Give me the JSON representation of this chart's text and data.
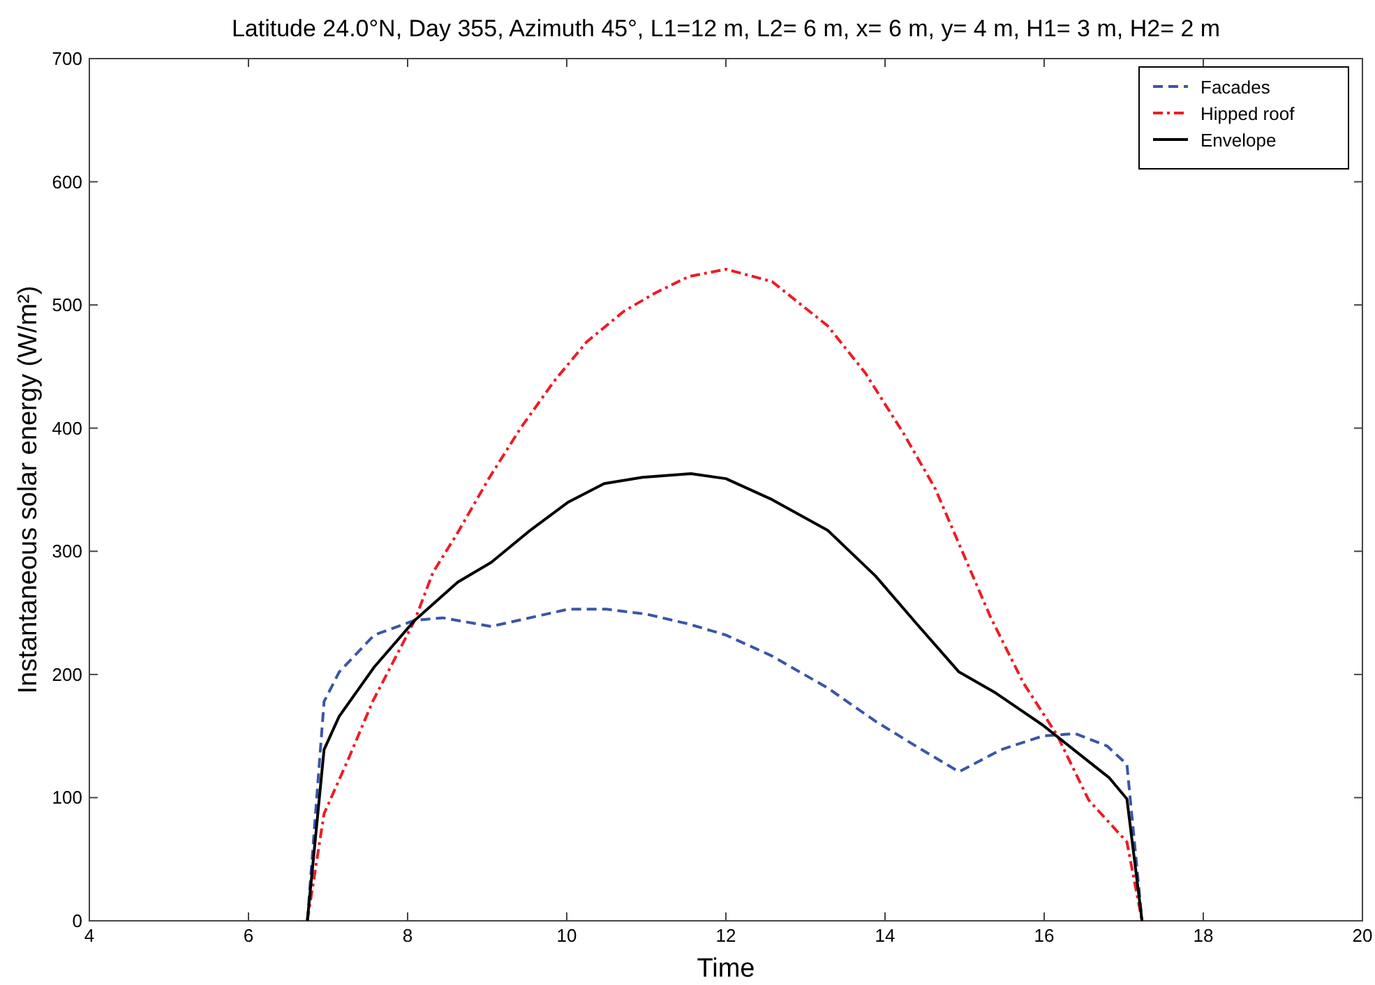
{
  "chart_data": {
    "type": "line",
    "title": "Latitude 24.0°N, Day 355, Azimuth  45°, L1=12 m, L2= 6 m, x= 6 m, y= 4 m, H1= 3 m, H2= 2 m",
    "xlabel": "Time",
    "ylabel": "Instantaneous solar energy (W/m²)",
    "xlim": [
      4,
      20
    ],
    "xticks": [
      4,
      6,
      8,
      10,
      12,
      14,
      16,
      18,
      20
    ],
    "ylim": [
      0,
      700
    ],
    "yticks": [
      0,
      100,
      200,
      300,
      400,
      500,
      600,
      700
    ],
    "grid": false,
    "legend": "top right",
    "marker": "none",
    "series": [
      {
        "name": "Facades",
        "color": "#3a56a8",
        "line_style": "dashed",
        "x": [
          6.74,
          6.95,
          7.14,
          7.58,
          8.09,
          8.44,
          9.05,
          10.02,
          10.5,
          11.0,
          11.53,
          12.0,
          12.58,
          13.28,
          13.88,
          14.46,
          14.93,
          15.46,
          15.98,
          16.39,
          16.79,
          17.04,
          17.23
        ],
        "values": [
          0,
          178,
          202,
          232,
          244,
          246,
          239,
          253,
          253,
          249,
          241,
          232,
          215,
          189,
          162,
          139,
          121,
          139,
          150,
          152,
          142,
          127,
          0
        ]
      },
      {
        "name": "Hipped roof",
        "color": "#ee1c25",
        "line_style": "dashdot",
        "x": [
          6.74,
          6.95,
          7.26,
          7.56,
          8.09,
          8.32,
          8.61,
          9.02,
          9.42,
          9.84,
          10.25,
          10.72,
          11.12,
          11.53,
          12.0,
          12.58,
          13.28,
          13.75,
          14.23,
          14.63,
          14.93,
          15.33,
          15.74,
          16.16,
          16.56,
          17.04,
          17.23
        ],
        "values": [
          0,
          87,
          132,
          178,
          244,
          283,
          313,
          359,
          400,
          438,
          470,
          495,
          510,
          523,
          529,
          519,
          483,
          445,
          396,
          351,
          306,
          246,
          193,
          151,
          98,
          64,
          0
        ]
      },
      {
        "name": "Envelope",
        "color": "#000000",
        "line_style": "solid",
        "x": [
          6.74,
          6.95,
          7.14,
          7.58,
          8.09,
          8.63,
          9.05,
          9.54,
          10.02,
          10.47,
          10.95,
          11.56,
          12.0,
          12.58,
          13.28,
          13.88,
          14.4,
          14.93,
          15.39,
          15.98,
          16.39,
          16.82,
          17.04,
          17.23
        ],
        "values": [
          0,
          139,
          166,
          206,
          244,
          275,
          291,
          317,
          340,
          355,
          360,
          363,
          359,
          342,
          317,
          280,
          241,
          202,
          185,
          159,
          138,
          116,
          99,
          0
        ]
      }
    ]
  }
}
